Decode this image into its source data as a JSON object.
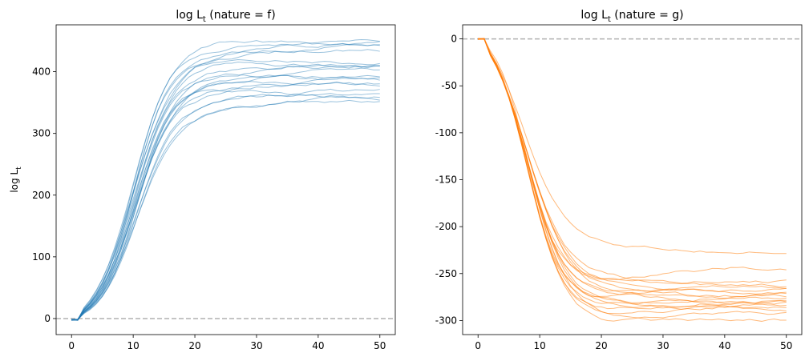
{
  "chart_data": [
    {
      "type": "line",
      "title_main": "log L",
      "title_sub": "t",
      "title_rest": " (nature = f)",
      "ylabel_main": "log L",
      "ylabel_sub": "t",
      "xlim": [
        -2.5,
        52.5
      ],
      "ylim": [
        -26,
        476
      ],
      "xticks": [
        0,
        10,
        20,
        30,
        40,
        50
      ],
      "yticks": [
        0,
        100,
        200,
        300,
        400
      ],
      "hline": 0,
      "color": "#1f77b4",
      "line_alpha": 0.45,
      "x_range": [
        0,
        50
      ],
      "series": [
        {
          "final": 450
        },
        {
          "final": 446
        },
        {
          "final": 443
        },
        {
          "final": 440
        },
        {
          "final": 437
        },
        {
          "final": 416
        },
        {
          "final": 413
        },
        {
          "final": 410
        },
        {
          "final": 407
        },
        {
          "final": 400
        },
        {
          "final": 390
        },
        {
          "final": 388
        },
        {
          "final": 386
        },
        {
          "final": 383
        },
        {
          "final": 380
        },
        {
          "final": 369
        },
        {
          "final": 362
        },
        {
          "final": 360
        },
        {
          "final": 358
        },
        {
          "final": 350
        }
      ]
    },
    {
      "type": "line",
      "title_main": "log L",
      "title_sub": "t",
      "title_rest": " (nature = g)",
      "ylabel_main": "",
      "ylabel_sub": "",
      "xlim": [
        -2.5,
        52.5
      ],
      "ylim": [
        -315,
        15
      ],
      "xticks": [
        0,
        10,
        20,
        30,
        40,
        50
      ],
      "yticks": [
        0,
        -50,
        -100,
        -150,
        -200,
        -250,
        -300
      ],
      "hline": 0,
      "color": "#ff7f0e",
      "line_alpha": 0.55,
      "x_range": [
        0,
        50
      ],
      "series": [
        {
          "final": -227
        },
        {
          "final": -244
        },
        {
          "final": -258
        },
        {
          "final": -263
        },
        {
          "final": -265
        },
        {
          "final": -268
        },
        {
          "final": -270
        },
        {
          "final": -272
        },
        {
          "final": -274
        },
        {
          "final": -276
        },
        {
          "final": -278
        },
        {
          "final": -280
        },
        {
          "final": -282
        },
        {
          "final": -284
        },
        {
          "final": -286
        },
        {
          "final": -288
        },
        {
          "final": -292
        },
        {
          "final": -299
        }
      ]
    }
  ]
}
